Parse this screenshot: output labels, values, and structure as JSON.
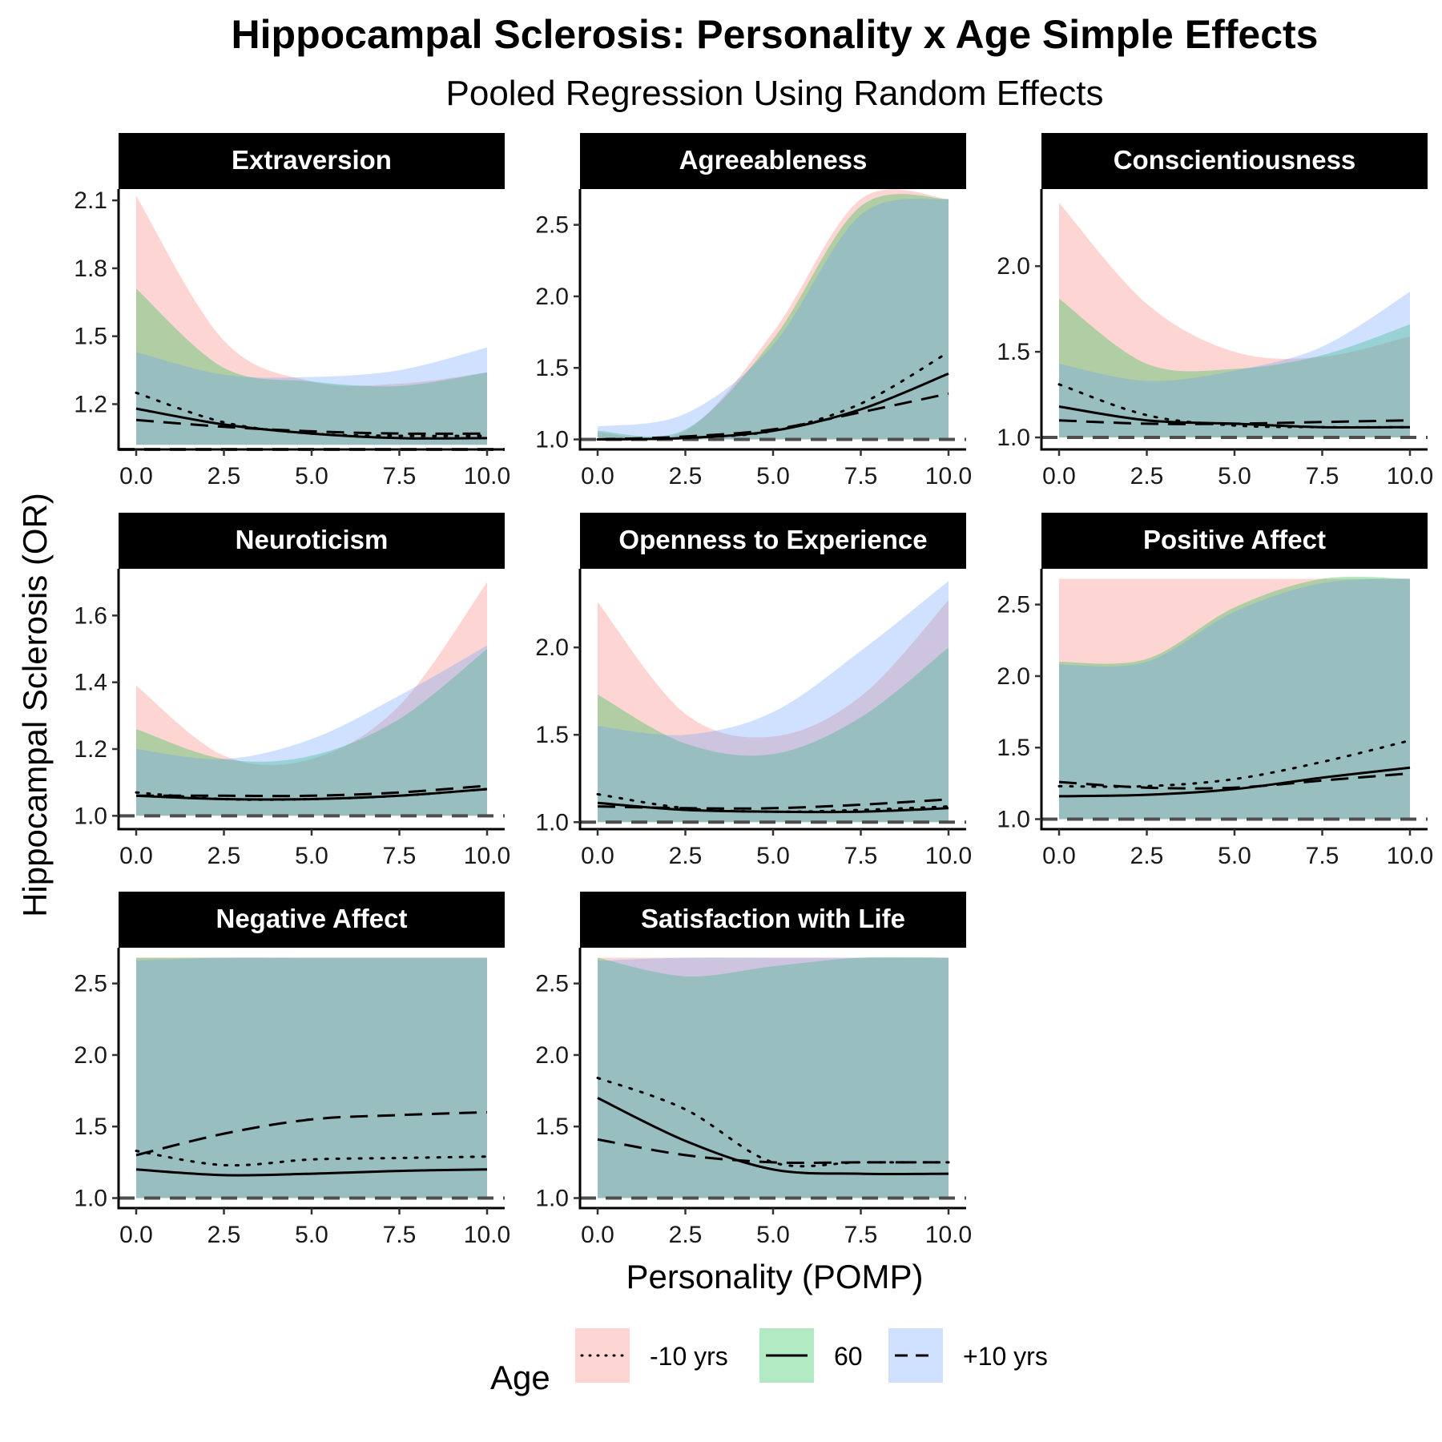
{
  "title": "Hippocampal Sclerosis: Personality x Age Simple Effects",
  "subtitle": "Pooled Regression Using Random Effects",
  "xlabel": "Personality (POMP)",
  "ylabel": "Hippocampal Sclerosis (OR)",
  "colors": {
    "minus10": "#F8766D",
    "age60": "#00BA38",
    "plus10": "#619CFF",
    "strip_bg": "#000000",
    "strip_text": "#FFFFFF",
    "reference_line": "#4D4D4D"
  },
  "legend": {
    "title": "Age",
    "position": "bottom",
    "items": [
      {
        "label": "-10 yrs",
        "linetype": "dotted",
        "color": "#F8766D"
      },
      {
        "label": "60",
        "linetype": "solid",
        "color": "#00BA38"
      },
      {
        "label": "+10 yrs",
        "linetype": "dashed",
        "color": "#619CFF"
      }
    ]
  },
  "chart_data": [
    {
      "type": "line",
      "panel": "Extraversion",
      "x": [
        0,
        2.5,
        5,
        7.5,
        10
      ],
      "ylim": [
        1.0,
        2.15
      ],
      "yticks": [
        "1.2",
        "1.5",
        "1.8",
        "2.1"
      ],
      "ytick_values": [
        1.2,
        1.5,
        1.8,
        2.1
      ],
      "xticks": [
        "0.0",
        "2.5",
        "5.0",
        "7.5",
        "10.0"
      ],
      "reference_y": 1.0,
      "series": [
        {
          "name": "-10 yrs",
          "est": [
            1.25,
            1.12,
            1.07,
            1.06,
            1.06
          ],
          "lo": [
            1.02,
            1.02,
            1.02,
            1.02,
            1.02
          ],
          "hi": [
            2.12,
            1.48,
            1.3,
            1.29,
            1.34
          ]
        },
        {
          "name": "60",
          "est": [
            1.18,
            1.11,
            1.07,
            1.05,
            1.05
          ],
          "lo": [
            1.02,
            1.02,
            1.02,
            1.02,
            1.02
          ],
          "hi": [
            1.71,
            1.36,
            1.3,
            1.28,
            1.34
          ]
        },
        {
          "name": "+10 yrs",
          "est": [
            1.13,
            1.1,
            1.08,
            1.07,
            1.07
          ],
          "lo": [
            1.02,
            1.02,
            1.02,
            1.02,
            1.02
          ],
          "hi": [
            1.43,
            1.33,
            1.32,
            1.35,
            1.45
          ]
        }
      ]
    },
    {
      "type": "line",
      "panel": "Agreeableness",
      "x": [
        0,
        2.5,
        5,
        7.5,
        10
      ],
      "ylim": [
        0.93,
        2.75
      ],
      "yticks": [
        "1.0",
        "1.5",
        "2.0",
        "2.5"
      ],
      "ytick_values": [
        1.0,
        1.5,
        2.0,
        2.5
      ],
      "xticks": [
        "0.0",
        "2.5",
        "5.0",
        "7.5",
        "10.0"
      ],
      "reference_y": 1.0,
      "series": [
        {
          "name": "-10 yrs",
          "est": [
            1.0,
            1.01,
            1.06,
            1.25,
            1.61
          ],
          "lo": [
            1.0,
            1.0,
            1.0,
            1.0,
            1.0
          ],
          "hi": [
            1.05,
            1.06,
            1.75,
            2.68,
            2.68
          ]
        },
        {
          "name": "60",
          "est": [
            1.0,
            1.01,
            1.06,
            1.21,
            1.46
          ],
          "lo": [
            1.0,
            1.0,
            1.0,
            1.0,
            1.0
          ],
          "hi": [
            1.06,
            1.07,
            1.7,
            2.63,
            2.68
          ]
        },
        {
          "name": "+10 yrs",
          "est": [
            1.0,
            1.02,
            1.07,
            1.19,
            1.32
          ],
          "lo": [
            1.0,
            1.0,
            1.0,
            1.0,
            1.0
          ],
          "hi": [
            1.09,
            1.18,
            1.66,
            2.57,
            2.68
          ]
        }
      ]
    },
    {
      "type": "line",
      "panel": "Conscientiousness",
      "x": [
        0,
        2.5,
        5,
        7.5,
        10
      ],
      "ylim": [
        0.93,
        2.45
      ],
      "yticks": [
        "1.0",
        "1.5",
        "2.0"
      ],
      "ytick_values": [
        1.0,
        1.5,
        2.0
      ],
      "xticks": [
        "0.0",
        "2.5",
        "5.0",
        "7.5",
        "10.0"
      ],
      "reference_y": 1.0,
      "series": [
        {
          "name": "-10 yrs",
          "est": [
            1.31,
            1.13,
            1.07,
            1.06,
            1.06
          ],
          "lo": [
            1.0,
            1.0,
            1.0,
            1.0,
            1.0
          ],
          "hi": [
            2.37,
            1.78,
            1.5,
            1.47,
            1.59
          ]
        },
        {
          "name": "60",
          "est": [
            1.18,
            1.1,
            1.08,
            1.06,
            1.06
          ],
          "lo": [
            1.0,
            1.0,
            1.0,
            1.0,
            1.0
          ],
          "hi": [
            1.81,
            1.43,
            1.4,
            1.48,
            1.66
          ]
        },
        {
          "name": "+10 yrs",
          "est": [
            1.1,
            1.08,
            1.08,
            1.09,
            1.1
          ],
          "lo": [
            1.0,
            1.0,
            1.0,
            1.0,
            1.0
          ],
          "hi": [
            1.43,
            1.33,
            1.39,
            1.53,
            1.85
          ]
        }
      ]
    },
    {
      "type": "line",
      "panel": "Neuroticism",
      "x": [
        0,
        2.5,
        5,
        7.5,
        10
      ],
      "ylim": [
        0.96,
        1.74
      ],
      "yticks": [
        "1.0",
        "1.2",
        "1.4",
        "1.6"
      ],
      "ytick_values": [
        1.0,
        1.2,
        1.4,
        1.6
      ],
      "xticks": [
        "0.0",
        "2.5",
        "5.0",
        "7.5",
        "10.0"
      ],
      "reference_y": 1.0,
      "series": [
        {
          "name": "-10 yrs",
          "est": [
            1.07,
            1.05,
            1.05,
            1.06,
            1.08
          ],
          "lo": [
            1.0,
            1.0,
            1.0,
            1.0,
            1.0
          ],
          "hi": [
            1.39,
            1.18,
            1.17,
            1.33,
            1.7
          ]
        },
        {
          "name": "60",
          "est": [
            1.06,
            1.05,
            1.05,
            1.06,
            1.08
          ],
          "lo": [
            1.0,
            1.0,
            1.0,
            1.0,
            1.0
          ],
          "hi": [
            1.26,
            1.17,
            1.18,
            1.29,
            1.5
          ]
        },
        {
          "name": "+10 yrs",
          "est": [
            1.06,
            1.06,
            1.06,
            1.07,
            1.09
          ],
          "lo": [
            1.0,
            1.0,
            1.0,
            1.0,
            1.0
          ],
          "hi": [
            1.2,
            1.17,
            1.23,
            1.36,
            1.51
          ]
        }
      ]
    },
    {
      "type": "line",
      "panel": "Openness to Experience",
      "x": [
        0,
        2.5,
        5,
        7.5,
        10
      ],
      "ylim": [
        0.96,
        2.45
      ],
      "yticks": [
        "1.0",
        "1.5",
        "2.0"
      ],
      "ytick_values": [
        1.0,
        1.5,
        2.0
      ],
      "xticks": [
        "0.0",
        "2.5",
        "5.0",
        "7.5",
        "10.0"
      ],
      "reference_y": 1.0,
      "series": [
        {
          "name": "-10 yrs",
          "est": [
            1.16,
            1.08,
            1.06,
            1.07,
            1.09
          ],
          "lo": [
            1.0,
            1.0,
            1.0,
            1.0,
            1.0
          ],
          "hi": [
            2.26,
            1.62,
            1.49,
            1.72,
            2.27
          ]
        },
        {
          "name": "60",
          "est": [
            1.11,
            1.07,
            1.06,
            1.06,
            1.08
          ],
          "lo": [
            1.0,
            1.0,
            1.0,
            1.0,
            1.0
          ],
          "hi": [
            1.73,
            1.45,
            1.39,
            1.6,
            2.0
          ]
        },
        {
          "name": "+10 yrs",
          "est": [
            1.09,
            1.08,
            1.08,
            1.1,
            1.13
          ],
          "lo": [
            1.0,
            1.0,
            1.0,
            1.0,
            1.0
          ],
          "hi": [
            1.55,
            1.5,
            1.63,
            1.98,
            2.38
          ]
        }
      ]
    },
    {
      "type": "line",
      "panel": "Positive Affect",
      "x": [
        0,
        2.5,
        5,
        7.5,
        10
      ],
      "ylim": [
        0.93,
        2.75
      ],
      "yticks": [
        "1.0",
        "1.5",
        "2.0",
        "2.5"
      ],
      "ytick_values": [
        1.0,
        1.5,
        2.0,
        2.5
      ],
      "xticks": [
        "0.0",
        "2.5",
        "5.0",
        "7.5",
        "10.0"
      ],
      "reference_y": 1.0,
      "series": [
        {
          "name": "-10 yrs",
          "est": [
            1.23,
            1.23,
            1.28,
            1.4,
            1.55
          ],
          "lo": [
            1.0,
            1.0,
            1.0,
            1.0,
            1.0
          ],
          "hi": [
            2.68,
            2.68,
            2.68,
            2.68,
            2.68
          ]
        },
        {
          "name": "60",
          "est": [
            1.16,
            1.17,
            1.21,
            1.29,
            1.36
          ],
          "lo": [
            1.0,
            1.0,
            1.0,
            1.0,
            1.0
          ],
          "hi": [
            2.1,
            2.12,
            2.48,
            2.68,
            2.68
          ]
        },
        {
          "name": "+10 yrs",
          "est": [
            1.26,
            1.22,
            1.22,
            1.27,
            1.32
          ],
          "lo": [
            1.0,
            1.0,
            1.0,
            1.0,
            1.0
          ],
          "hi": [
            2.08,
            2.1,
            2.45,
            2.65,
            2.68
          ]
        }
      ]
    },
    {
      "type": "line",
      "panel": "Negative Affect",
      "x": [
        0,
        2.5,
        5,
        7.5,
        10
      ],
      "ylim": [
        0.93,
        2.75
      ],
      "yticks": [
        "1.0",
        "1.5",
        "2.0",
        "2.5"
      ],
      "ytick_values": [
        1.0,
        1.5,
        2.0,
        2.5
      ],
      "xticks": [
        "0.0",
        "2.5",
        "5.0",
        "7.5",
        "10.0"
      ],
      "reference_y": 1.0,
      "series": [
        {
          "name": "-10 yrs",
          "est": [
            1.33,
            1.23,
            1.27,
            1.28,
            1.29
          ],
          "lo": [
            1.0,
            1.0,
            1.0,
            1.0,
            1.0
          ],
          "hi": [
            2.68,
            2.68,
            2.68,
            2.68,
            2.68
          ]
        },
        {
          "name": "60",
          "est": [
            1.2,
            1.16,
            1.17,
            1.19,
            1.2
          ],
          "lo": [
            1.0,
            1.0,
            1.0,
            1.0,
            1.0
          ],
          "hi": [
            2.68,
            2.68,
            2.68,
            2.68,
            2.68
          ]
        },
        {
          "name": "+10 yrs",
          "est": [
            1.3,
            1.45,
            1.55,
            1.58,
            1.6
          ],
          "lo": [
            1.0,
            1.0,
            1.0,
            1.0,
            1.0
          ],
          "hi": [
            2.66,
            2.68,
            2.68,
            2.68,
            2.68
          ]
        }
      ]
    },
    {
      "type": "line",
      "panel": "Satisfaction with Life",
      "x": [
        0,
        2.5,
        5,
        7.5,
        10
      ],
      "ylim": [
        0.93,
        2.75
      ],
      "yticks": [
        "1.0",
        "1.5",
        "2.0",
        "2.5"
      ],
      "ytick_values": [
        1.0,
        1.5,
        2.0,
        2.5
      ],
      "xticks": [
        "0.0",
        "2.5",
        "5.0",
        "7.5",
        "10.0"
      ],
      "reference_y": 1.0,
      "series": [
        {
          "name": "-10 yrs",
          "est": [
            1.84,
            1.62,
            1.25,
            1.25,
            1.25
          ],
          "lo": [
            1.0,
            1.0,
            1.0,
            1.0,
            1.0
          ],
          "hi": [
            2.68,
            2.68,
            2.68,
            2.68,
            2.68
          ]
        },
        {
          "name": "60",
          "est": [
            1.7,
            1.4,
            1.2,
            1.17,
            1.17
          ],
          "lo": [
            1.0,
            1.0,
            1.0,
            1.0,
            1.0
          ],
          "hi": [
            2.68,
            2.55,
            2.62,
            2.68,
            2.68
          ]
        },
        {
          "name": "+10 yrs",
          "est": [
            1.41,
            1.3,
            1.25,
            1.25,
            1.25
          ],
          "lo": [
            1.0,
            1.0,
            1.0,
            1.0,
            1.0
          ],
          "hi": [
            2.66,
            2.68,
            2.68,
            2.68,
            2.68
          ]
        }
      ]
    }
  ]
}
